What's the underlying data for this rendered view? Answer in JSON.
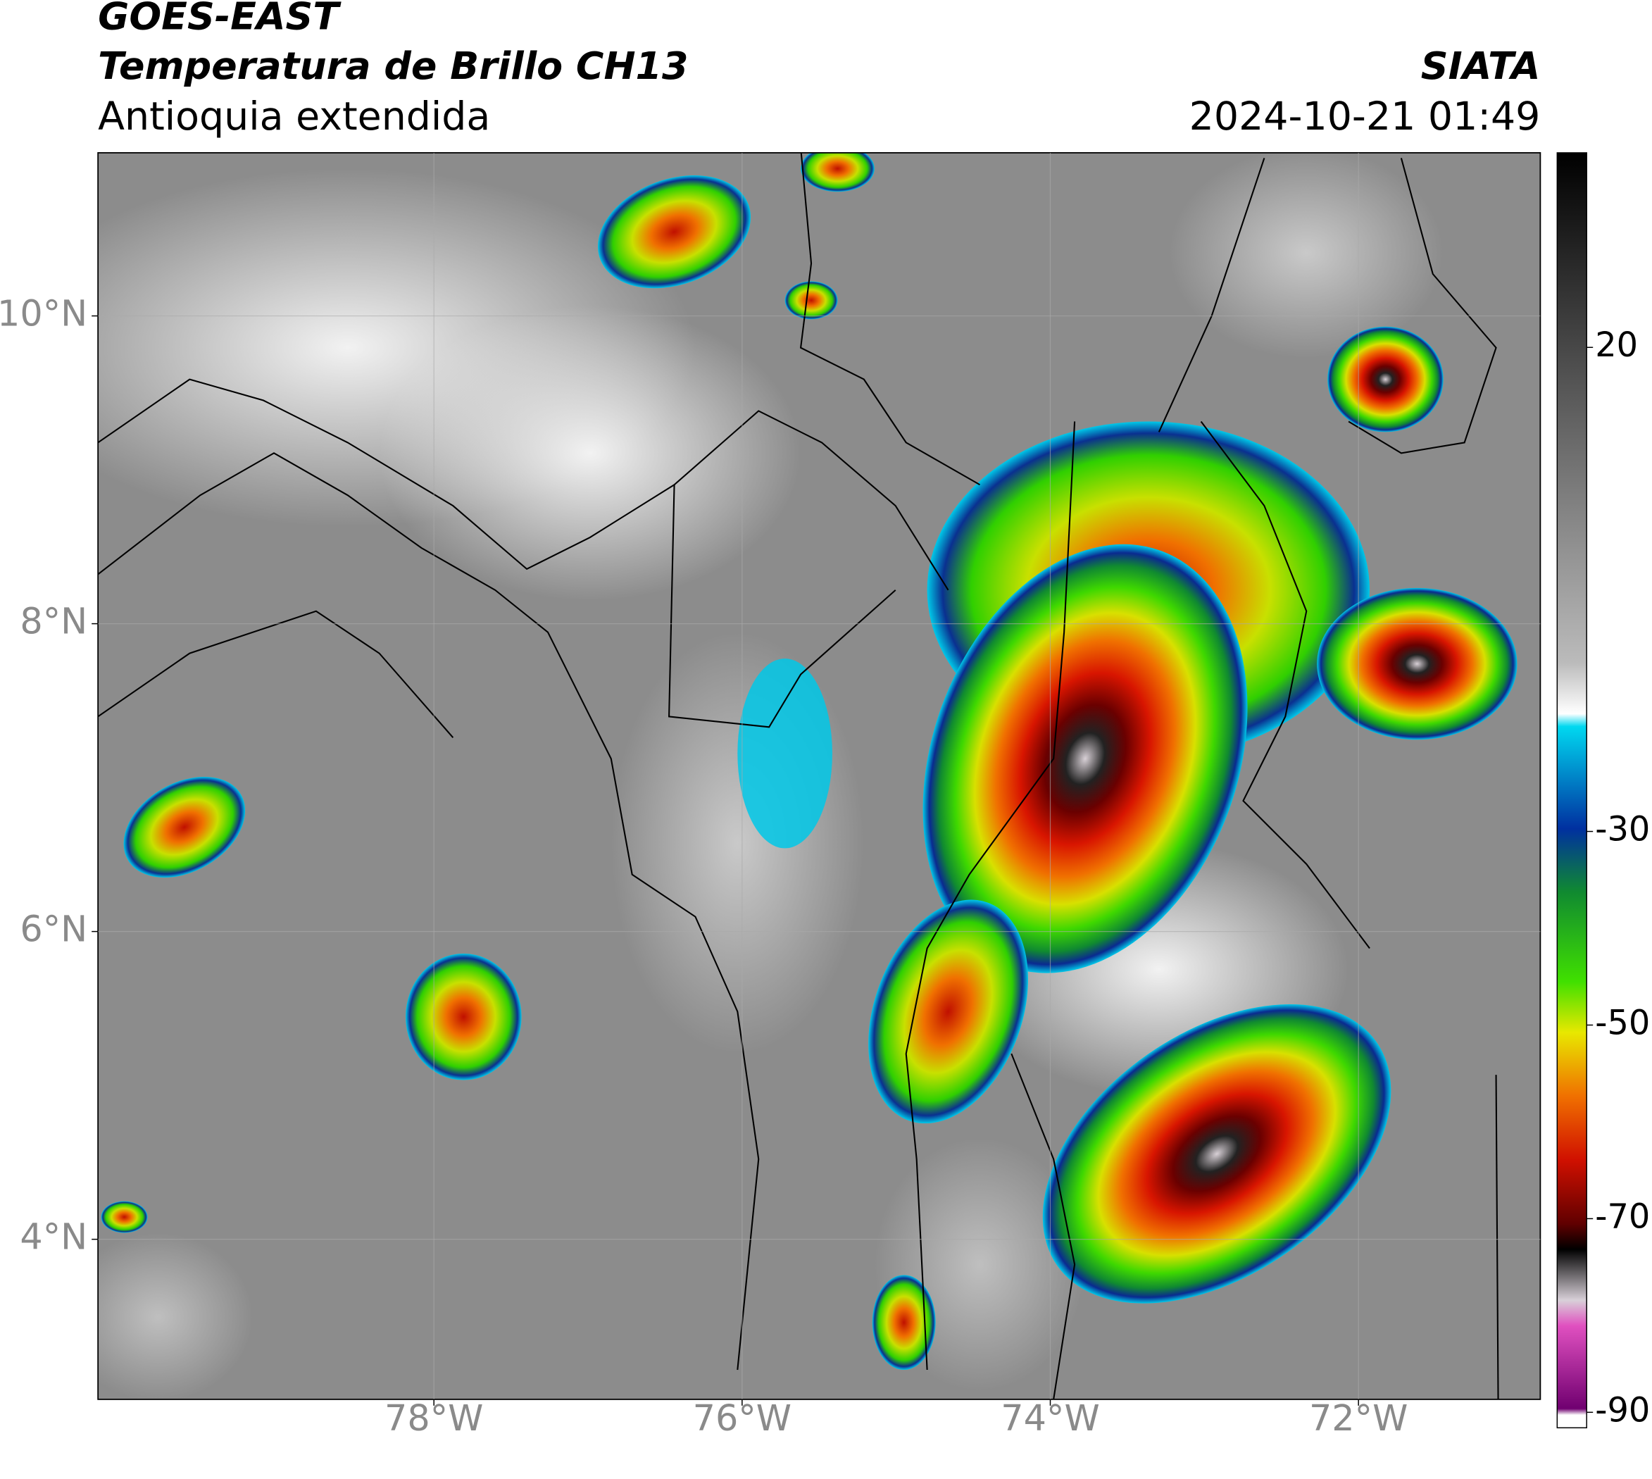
{
  "header": {
    "title": "GOES-EAST",
    "subtitle": "Temperatura de Brillo CH13",
    "region": "Antioquia extendida",
    "agency": "SIATA",
    "datetime": "2024-10-21 01:49"
  },
  "map": {
    "lon_range": [
      -80.18,
      -70.82
    ],
    "lat_range": [
      2.96,
      11.06
    ],
    "lon_ticks": [
      {
        "value": -78,
        "label": "78°W"
      },
      {
        "value": -76,
        "label": "76°W"
      },
      {
        "value": -74,
        "label": "74°W"
      },
      {
        "value": -72,
        "label": "72°W"
      }
    ],
    "lat_ticks": [
      {
        "value": 10,
        "label": "10°N"
      },
      {
        "value": 8,
        "label": "8°N"
      },
      {
        "value": 6,
        "label": "6°N"
      },
      {
        "value": 4,
        "label": "4°N"
      }
    ],
    "grid": true
  },
  "colorbar": {
    "range": [
      -91.6,
      40.1
    ],
    "ticks": [
      20,
      -30,
      -50,
      -70,
      -90
    ]
  }
}
